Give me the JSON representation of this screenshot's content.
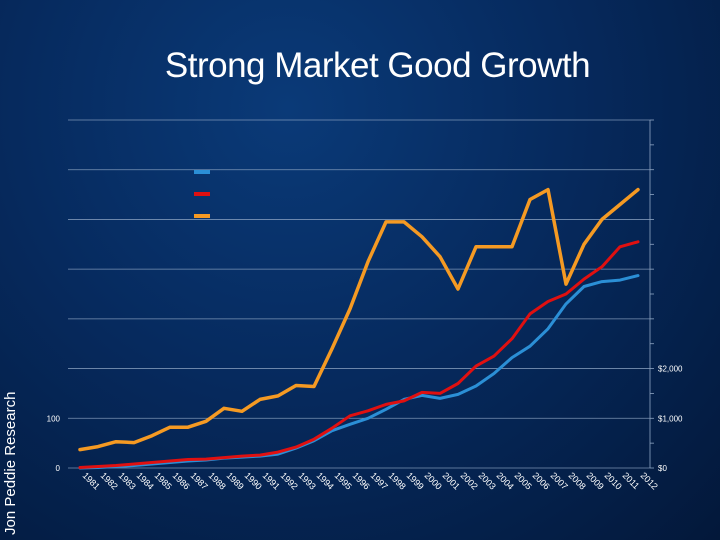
{
  "title": "Strong Market Good Growth",
  "side_label": "Jon Peddie Research",
  "colors": {
    "units": "#2b8fd6",
    "revenue": "#e01010",
    "price": "#f59a23",
    "grid": "#8fa6c4"
  },
  "chart_data": {
    "type": "line",
    "categories": [
      "1981",
      "1982",
      "1983",
      "1984",
      "1985",
      "1986",
      "1987",
      "1988",
      "1989",
      "1990",
      "1991",
      "1992",
      "1993",
      "1994",
      "1995",
      "1996",
      "1997",
      "1998",
      "1999",
      "2000",
      "2001",
      "2002",
      "2003",
      "2004",
      "2005",
      "2006",
      "2007",
      "2008",
      "2009",
      "2010",
      "2011",
      "2012"
    ],
    "left_axis": {
      "ylim": [
        0,
        700
      ],
      "tick_labels": [
        {
          "value": 0,
          "label": "0"
        },
        {
          "value": 100,
          "label": "100"
        }
      ]
    },
    "right_axis": {
      "ylim": [
        0,
        7000
      ],
      "tick_labels": [
        {
          "value": 0,
          "label": "$0"
        },
        {
          "value": 1000,
          "label": "$1,000"
        },
        {
          "value": 2000,
          "label": "$2,000"
        }
      ]
    },
    "grid": true,
    "legend_position": "top-left",
    "series": [
      {
        "key": "units",
        "axis": "left",
        "values": [
          0,
          1,
          3,
          5,
          8,
          11,
          14,
          16,
          20,
          22,
          24,
          28,
          40,
          55,
          75,
          88,
          100,
          118,
          138,
          146,
          140,
          148,
          165,
          190,
          222,
          245,
          280,
          330,
          365,
          375,
          378,
          387
        ]
      },
      {
        "key": "revenue",
        "axis": "left",
        "values": [
          1,
          3,
          5,
          8,
          11,
          14,
          17,
          18,
          21,
          24,
          26,
          32,
          42,
          58,
          80,
          105,
          115,
          128,
          135,
          152,
          150,
          170,
          205,
          225,
          260,
          310,
          335,
          350,
          380,
          405,
          445,
          455
        ]
      },
      {
        "key": "price",
        "axis": "right",
        "values": [
          370,
          430,
          530,
          510,
          650,
          820,
          820,
          940,
          1200,
          1140,
          1380,
          1450,
          1660,
          1640,
          2400,
          3200,
          4150,
          4950,
          4950,
          4650,
          4250,
          3600,
          4450,
          4450,
          4450,
          5400,
          5600,
          3700,
          4500,
          5000,
          5300,
          5600
        ]
      }
    ]
  }
}
